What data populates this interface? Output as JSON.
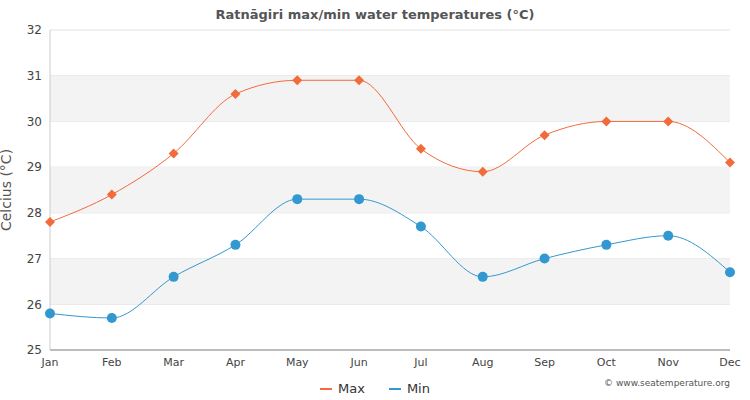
{
  "chart_data": {
    "type": "line",
    "title": "Ratnāgiri max/min water temperatures (°C)",
    "y_label": "Celcius (°C)",
    "annotation": "© www.seatemperature.org",
    "categories": [
      "Jan",
      "Feb",
      "Mar",
      "Apr",
      "May",
      "Jun",
      "Jul",
      "Aug",
      "Sep",
      "Oct",
      "Nov",
      "Dec"
    ],
    "series": [
      {
        "name": "Max",
        "color": "#f26b3a",
        "marker": "diamond",
        "values": [
          27.8,
          28.4,
          29.3,
          30.6,
          30.9,
          30.9,
          29.4,
          28.9,
          29.7,
          30.0,
          30.0,
          29.1
        ]
      },
      {
        "name": "Min",
        "color": "#3398d0",
        "marker": "circle",
        "values": [
          25.8,
          25.7,
          26.6,
          27.3,
          28.3,
          28.3,
          27.7,
          26.6,
          27.0,
          27.3,
          27.5,
          26.7
        ]
      }
    ],
    "ylim": [
      25,
      32
    ],
    "yticks": [
      25,
      26,
      27,
      28,
      29,
      30,
      31,
      32
    ],
    "grid": true,
    "legend": "bottom"
  }
}
